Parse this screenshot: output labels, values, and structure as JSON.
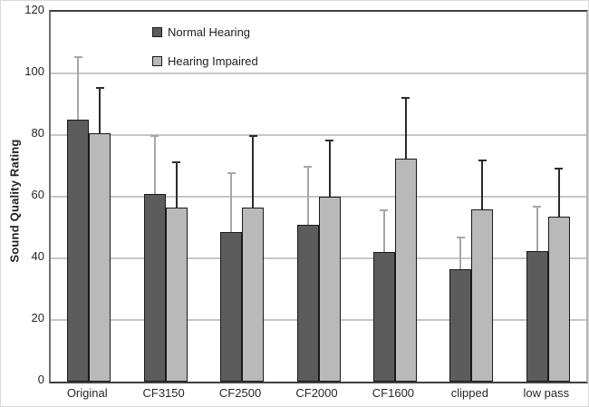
{
  "chart_data": {
    "type": "bar",
    "title": "",
    "xlabel": "",
    "ylabel": "Sound Quality Rating",
    "categories": [
      "Original",
      "CF3150",
      "CF2500",
      "CF2000",
      "CF1600",
      "clipped",
      "low pass"
    ],
    "series": [
      {
        "name": "Normal Hearing",
        "values": [
          85,
          61,
          48.5,
          51,
          42,
          36.5,
          42.5
        ],
        "error_plus": [
          20.5,
          19,
          19.5,
          19,
          14,
          10.5,
          14.5
        ],
        "color": "#5c5c5c",
        "error_color": "#a6a6a6"
      },
      {
        "name": "Hearing Impaired",
        "values": [
          80.5,
          56.5,
          56.5,
          60,
          72.5,
          56,
          53.5
        ],
        "error_plus": [
          15,
          15,
          23.5,
          18.5,
          20,
          16,
          16
        ],
        "color": "#b9b9b9",
        "error_color": "#2b2b2b"
      }
    ],
    "ylim": [
      0,
      120
    ],
    "yticks": [
      0,
      20,
      40,
      60,
      80,
      100,
      120
    ],
    "grid": true,
    "legend_position": "inside-top-center",
    "colors": {
      "gridline": "#c6c6c6",
      "axis": "#404040",
      "bar_border": "#1a1a1a",
      "text": "#262626"
    }
  }
}
